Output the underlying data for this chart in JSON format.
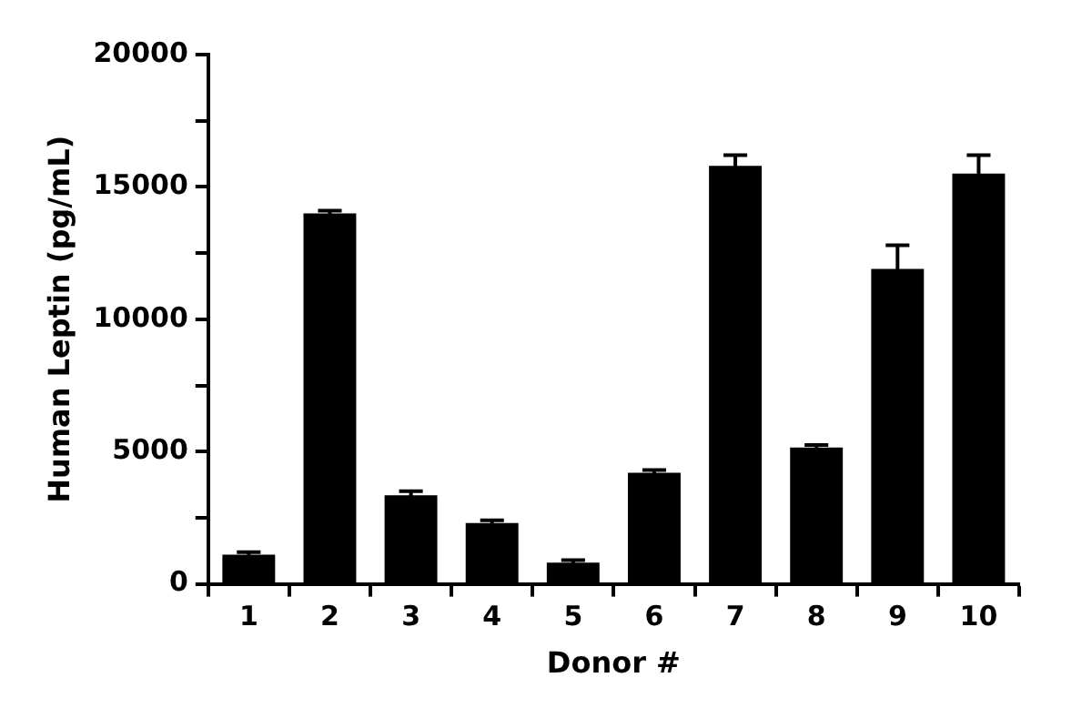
{
  "chart_data": {
    "type": "bar",
    "xlabel": "Donor #",
    "ylabel": "Human Leptin (pg/mL)",
    "categories": [
      "1",
      "2",
      "3",
      "4",
      "5",
      "6",
      "7",
      "8",
      "9",
      "10"
    ],
    "values": [
      1100,
      14000,
      3350,
      2300,
      800,
      4200,
      15800,
      5150,
      11900,
      15500
    ],
    "errors": [
      100,
      100,
      150,
      100,
      100,
      100,
      400,
      100,
      900,
      700
    ],
    "color": "#000000",
    "ylim": [
      0,
      20000
    ],
    "yticks": [
      0,
      {
        "value": 2500,
        "label": null
      },
      5000,
      {
        "value": 7500,
        "label": null
      },
      10000,
      {
        "value": 12500,
        "label": null
      },
      15000,
      {
        "value": 17500,
        "label": null
      },
      20000
    ],
    "grid": false,
    "legend": false
  }
}
